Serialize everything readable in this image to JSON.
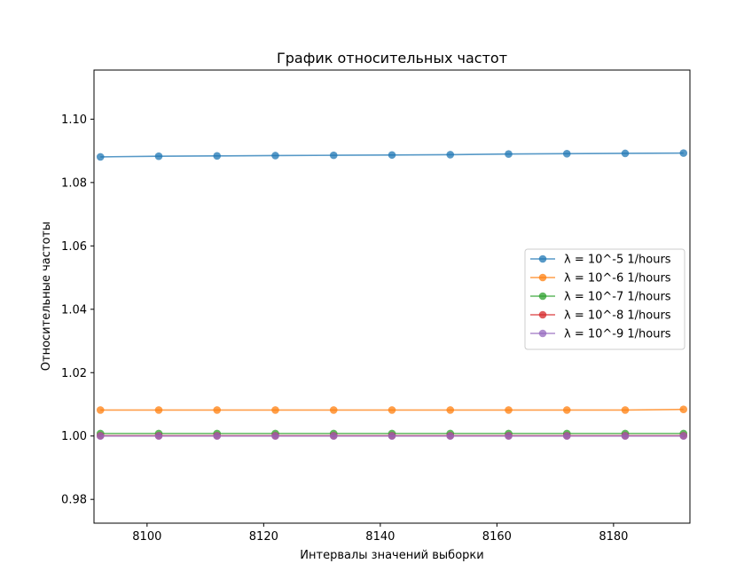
{
  "chart_data": {
    "type": "line",
    "title": "График относительных частот",
    "xlabel": "Интервалы значений выборки",
    "ylabel": "Относительные частоты",
    "xlim": [
      8090.9,
      8193.1
    ],
    "ylim": [
      0.9725,
      1.1155
    ],
    "xticks": [
      8100,
      8120,
      8140,
      8160,
      8180
    ],
    "yticks": [
      0.98,
      1.0,
      1.02,
      1.04,
      1.06,
      1.08,
      1.1
    ],
    "grid": false,
    "legend_position": "center-right",
    "x": [
      8092,
      8102,
      8112,
      8122,
      8132,
      8142,
      8152,
      8162,
      8172,
      8182,
      8192
    ],
    "series": [
      {
        "name": "λ = 10^-5 1/hours",
        "color": "#1f77b4",
        "values": [
          1.0881,
          1.0883,
          1.0884,
          1.0885,
          1.0886,
          1.0887,
          1.0888,
          1.089,
          1.0891,
          1.0892,
          1.0893
        ]
      },
      {
        "name": "λ = 10^-6 1/hours",
        "color": "#ff7f0e",
        "values": [
          1.0082,
          1.0082,
          1.0082,
          1.0082,
          1.0082,
          1.0082,
          1.0082,
          1.0082,
          1.0082,
          1.0082,
          1.0084
        ]
      },
      {
        "name": "λ = 10^-7 1/hours",
        "color": "#2ca02c",
        "values": [
          1.0008,
          1.0008,
          1.0008,
          1.0008,
          1.0008,
          1.0008,
          1.0008,
          1.0008,
          1.0008,
          1.0008,
          1.0008
        ]
      },
      {
        "name": "λ = 10^-8 1/hours",
        "color": "#d62728",
        "values": [
          1.0001,
          1.0001,
          1.0001,
          1.0001,
          1.0001,
          1.0001,
          1.0001,
          1.0001,
          1.0001,
          1.0001,
          1.0001
        ]
      },
      {
        "name": "λ = 10^-9 1/hours",
        "color": "#9467bd",
        "values": [
          1.0,
          1.0,
          1.0,
          1.0,
          1.0,
          1.0,
          1.0,
          1.0,
          1.0,
          1.0,
          1.0
        ]
      }
    ]
  }
}
